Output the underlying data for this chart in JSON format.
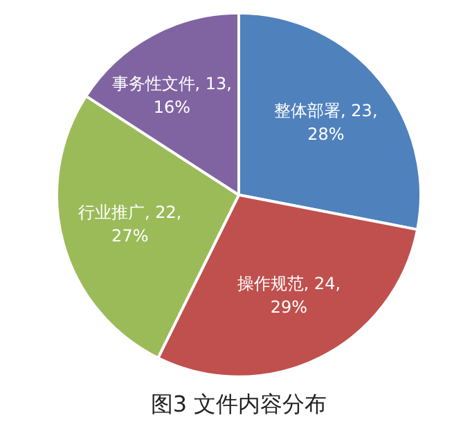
{
  "chart_data": {
    "type": "pie",
    "title": "图3 文件内容分布",
    "categories": [
      "整体部署",
      "操作规范",
      "行业推广",
      "事务性文件"
    ],
    "values": [
      23,
      24,
      22,
      13
    ],
    "colors": [
      "#4f81bd",
      "#c0504d",
      "#9bbb59",
      "#8064a2"
    ],
    "value_labels": [
      "23, 28%",
      "24, 29%",
      "22, 27%",
      "13, 16%"
    ],
    "legend": false
  }
}
